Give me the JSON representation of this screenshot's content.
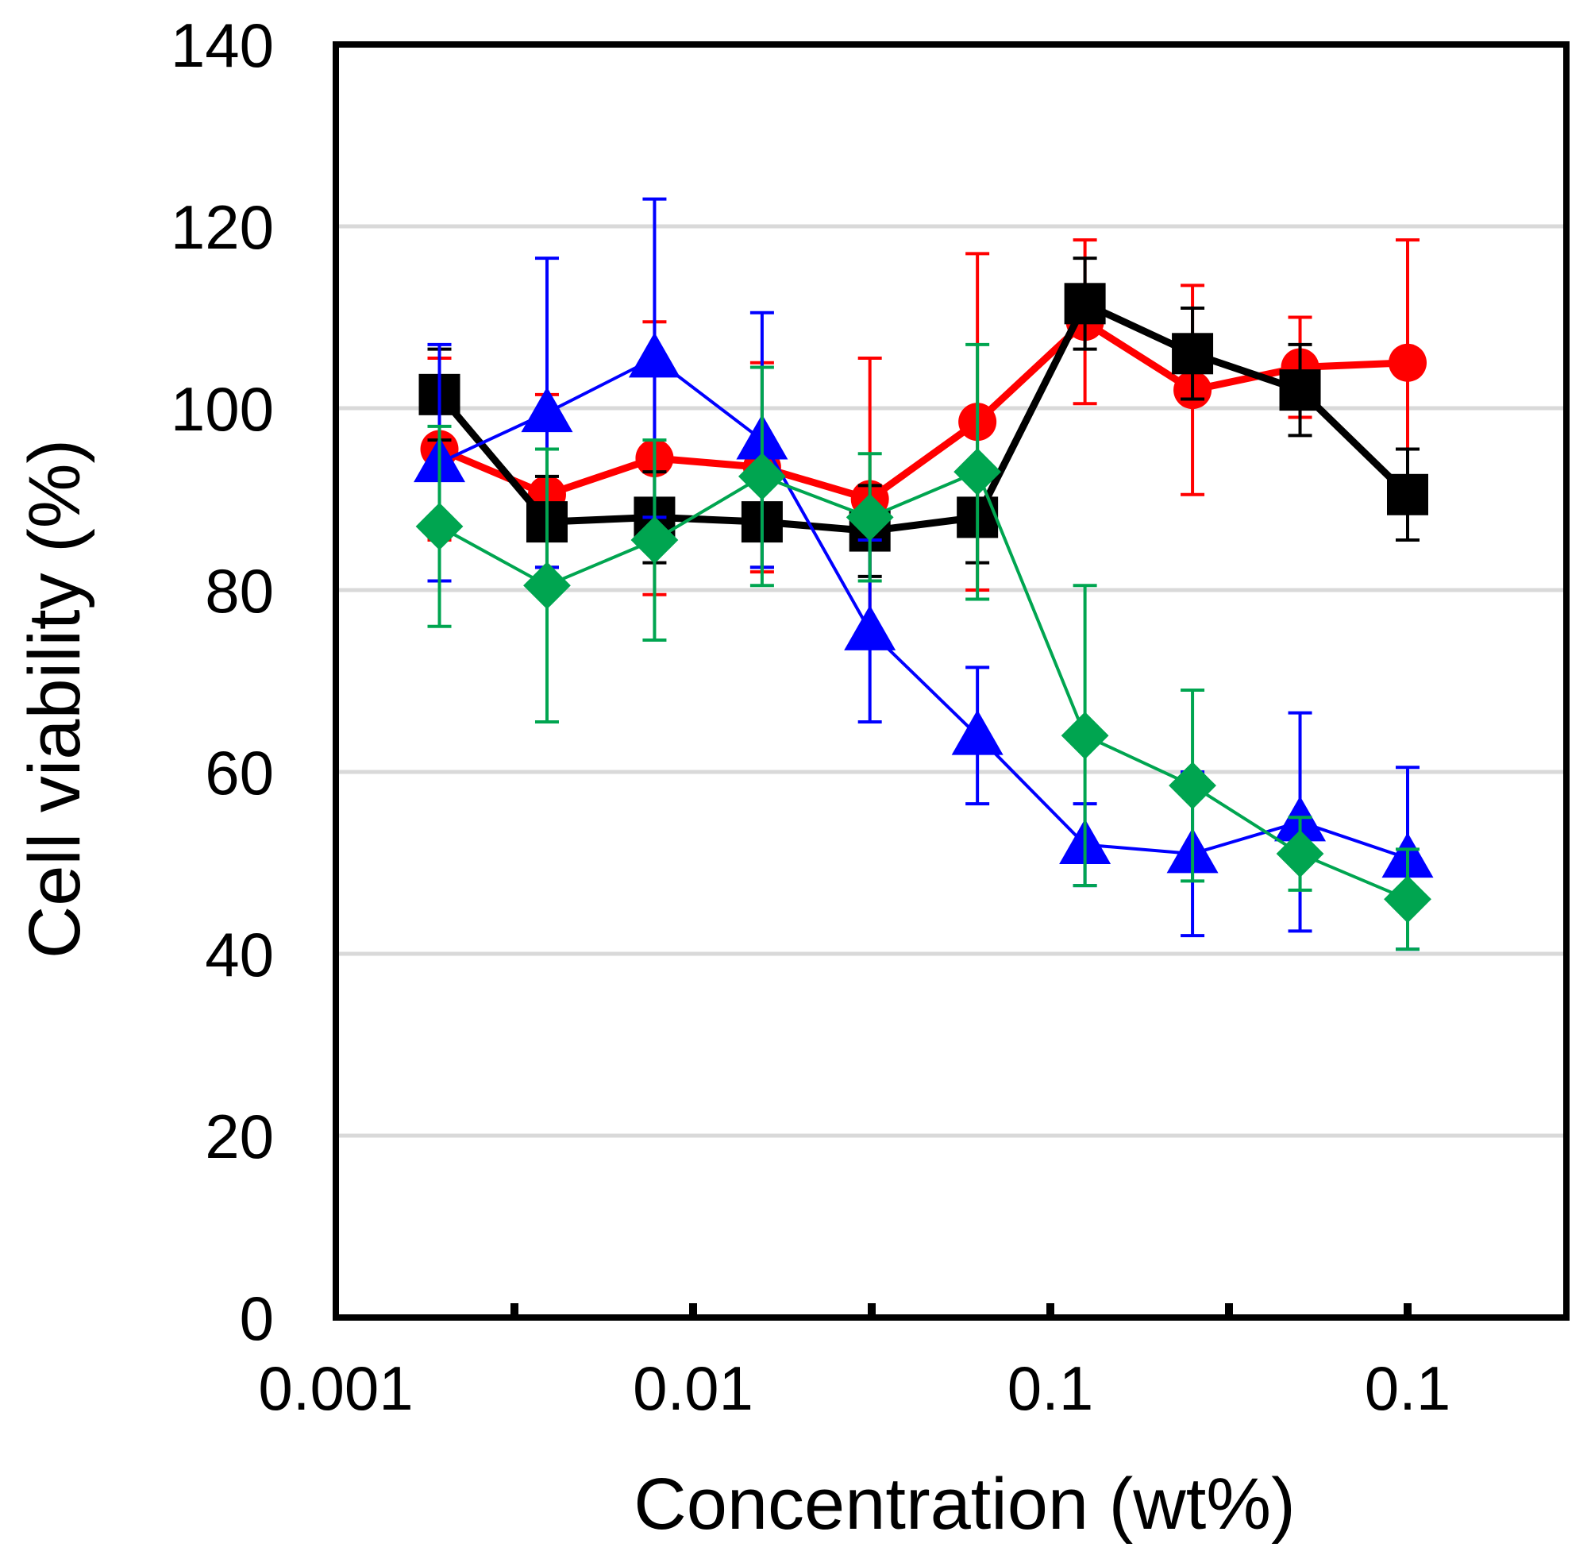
{
  "chart_data": {
    "type": "line",
    "title": "",
    "xlabel": "Concentration (wt%)",
    "ylabel": "Cell viability (%)",
    "ylim": [
      0,
      140
    ],
    "yticks": [
      "0",
      "20",
      "40",
      "60",
      "80",
      "100",
      "120",
      "140"
    ],
    "xtick_labels": [
      "0.001",
      "0.01",
      "0.1",
      "0.1"
    ],
    "grid": true,
    "x": [
      0.00195,
      0.0039,
      0.0078,
      0.0156,
      0.03125,
      0.0625,
      0.125,
      0.25,
      0.5,
      1.0
    ],
    "series": [
      {
        "name": "red-circle",
        "color": "#ff0000",
        "marker": "circle",
        "values": [
          95.5,
          90.5,
          94.5,
          93.5,
          90,
          98.5,
          109.5,
          102,
          104.5,
          105
        ],
        "errors": [
          10,
          11,
          15,
          11.5,
          15.5,
          18.5,
          9,
          11.5,
          5.5,
          13.5
        ]
      },
      {
        "name": "black-square",
        "color": "#000000",
        "marker": "square",
        "values": [
          101.5,
          87.5,
          88,
          87.5,
          86.5,
          88,
          111.5,
          106,
          102,
          90.5
        ],
        "errors": [
          5,
          5,
          5,
          5,
          5,
          5,
          5,
          5,
          5,
          5
        ]
      },
      {
        "name": "blue-triangle",
        "color": "#0000ff",
        "marker": "triangle",
        "values": [
          94,
          99.5,
          105.5,
          96.5,
          75.5,
          64,
          52,
          51,
          54.5,
          50.5
        ],
        "errors": [
          13,
          17,
          17.5,
          14,
          10,
          7.5,
          4.5,
          9,
          12,
          10
        ]
      },
      {
        "name": "green-diamond",
        "color": "#00a550",
        "marker": "diamond",
        "values": [
          87,
          80.5,
          85.5,
          92.5,
          88,
          93,
          64,
          58.5,
          51,
          46
        ],
        "errors": [
          11,
          15,
          11,
          12,
          7,
          14,
          16.5,
          10.5,
          4,
          5.5
        ]
      }
    ]
  }
}
